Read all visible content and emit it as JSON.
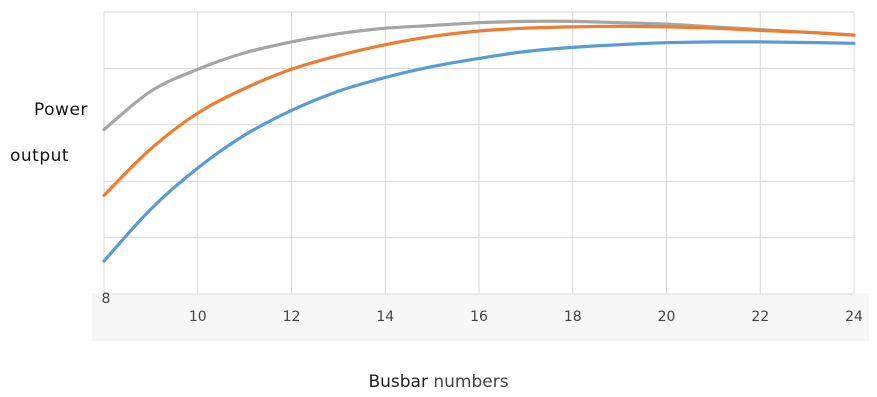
{
  "chart_data": {
    "type": "line",
    "title": "",
    "xlabel_bold": "Busbar",
    "xlabel_rest": "numbers",
    "ylabel_line1": "Power",
    "ylabel_line2": "output",
    "xlim": [
      8,
      24
    ],
    "x_ticks": [
      "8",
      "10",
      "12",
      "14",
      "16",
      "18",
      "20",
      "22",
      "24"
    ],
    "grid": true,
    "legend": "none",
    "x": [
      8,
      9,
      10,
      11,
      12,
      13,
      14,
      15,
      16,
      17,
      18,
      19,
      20,
      21,
      22,
      23,
      24
    ],
    "series": [
      {
        "color": "#A5A5A5",
        "values": [
          0.6,
          0.74,
          0.82,
          0.88,
          0.92,
          0.95,
          0.97,
          0.98,
          0.99,
          0.995,
          0.995,
          0.99,
          0.985,
          0.975,
          0.965,
          0.955,
          0.945
        ]
      },
      {
        "color": "#ED7D31",
        "values": [
          0.36,
          0.53,
          0.66,
          0.75,
          0.82,
          0.87,
          0.91,
          0.94,
          0.96,
          0.97,
          0.975,
          0.977,
          0.975,
          0.97,
          0.962,
          0.955,
          0.945
        ]
      },
      {
        "color": "#5B9BD5",
        "values": [
          0.12,
          0.31,
          0.46,
          0.58,
          0.67,
          0.74,
          0.79,
          0.83,
          0.86,
          0.885,
          0.9,
          0.91,
          0.917,
          0.92,
          0.92,
          0.918,
          0.915
        ]
      }
    ]
  }
}
